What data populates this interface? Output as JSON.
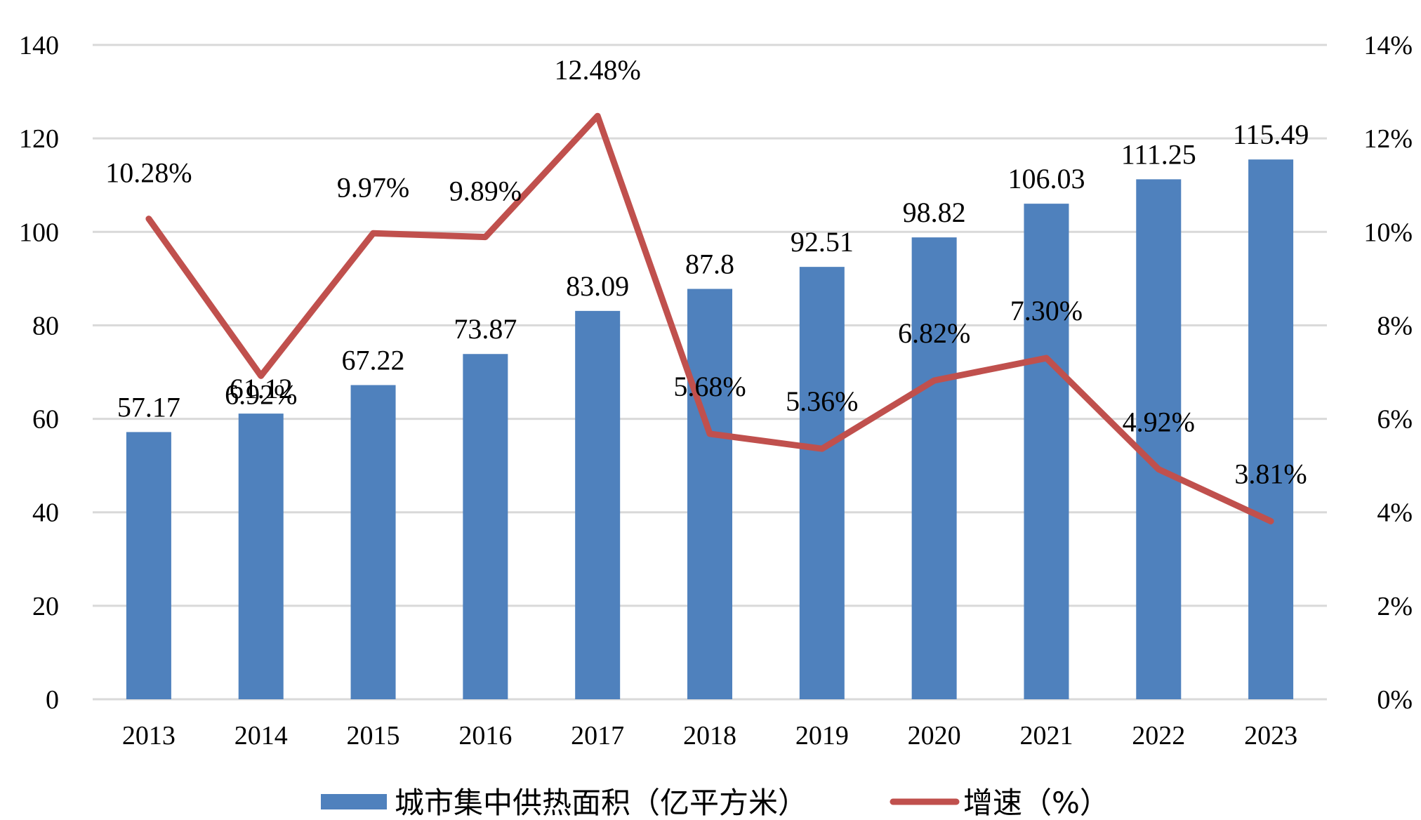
{
  "chart_data": {
    "type": "bar",
    "title": "",
    "categories": [
      "2013",
      "2014",
      "2015",
      "2016",
      "2017",
      "2018",
      "2019",
      "2020",
      "2021",
      "2022",
      "2023"
    ],
    "series": [
      {
        "name": "城市集中供热面积（亿平方米）",
        "type": "bar",
        "axis": "left",
        "color": "#4F81BD",
        "values": [
          57.17,
          61.12,
          67.22,
          73.87,
          83.09,
          87.8,
          92.51,
          98.82,
          106.03,
          111.25,
          115.49
        ],
        "labels": [
          "57.17",
          "61.12",
          "67.22",
          "73.87",
          "83.09",
          "87.8",
          "92.51",
          "98.82",
          "106.03",
          "111.25",
          "115.49"
        ]
      },
      {
        "name": "增速（%）",
        "type": "line",
        "axis": "right",
        "color": "#C0504D",
        "values": [
          10.28,
          6.92,
          9.97,
          9.89,
          12.48,
          5.68,
          5.36,
          6.82,
          7.3,
          4.92,
          3.81
        ],
        "labels": [
          "10.28%",
          "6.92%",
          "9.97%",
          "9.89%",
          "12.48%",
          "5.68%",
          "5.36%",
          "6.82%",
          "7.30%",
          "4.92%",
          "3.81%"
        ]
      }
    ],
    "y_left": {
      "ylim": [
        0,
        140
      ],
      "ticks": [
        "0",
        "20",
        "40",
        "60",
        "80",
        "100",
        "120",
        "140"
      ],
      "tick_values": [
        0,
        20,
        40,
        60,
        80,
        100,
        120,
        140
      ]
    },
    "y_right": {
      "ylim": [
        0,
        14
      ],
      "ticks": [
        "0%",
        "2%",
        "4%",
        "6%",
        "8%",
        "10%",
        "12%",
        "14%"
      ],
      "tick_values": [
        0,
        2,
        4,
        6,
        8,
        10,
        12,
        14
      ]
    },
    "xlabel": "",
    "ylabel": "",
    "grid": true,
    "legend_position": "bottom-center",
    "gridline_color": "#D9D9D9"
  }
}
